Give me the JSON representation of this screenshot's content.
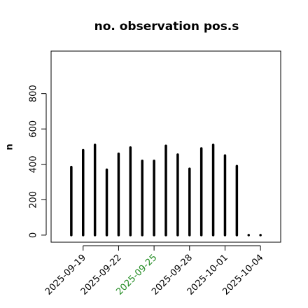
{
  "chart_data": {
    "type": "bar",
    "title": "no. observation pos.s",
    "y_label": "n",
    "x": [
      "2025-09-18",
      "2025-09-19",
      "2025-09-20",
      "2025-09-21",
      "2025-09-22",
      "2025-09-23",
      "2025-09-24",
      "2025-09-25",
      "2025-09-26",
      "2025-09-27",
      "2025-09-28",
      "2025-09-29",
      "2025-09-30",
      "2025-10-01",
      "2025-10-02",
      "2025-10-03",
      "2025-10-04"
    ],
    "values": [
      385,
      480,
      510,
      370,
      460,
      495,
      420,
      420,
      505,
      455,
      375,
      490,
      510,
      450,
      390,
      0,
      0
    ],
    "color": "#000000",
    "xlim": [
      "2025-09-16T07:00",
      "2025-10-05T17:00"
    ],
    "xticks": [
      "2025-09-19",
      "2025-09-22",
      "2025-09-25",
      "2025-09-28",
      "2025-10-01",
      "2025-10-04"
    ],
    "xtick_colors": [
      "#000000",
      "#000000",
      "#228b22",
      "#000000",
      "#000000",
      "#000000"
    ],
    "ylim": [
      -40,
      1040
    ],
    "yticks": [
      0,
      200,
      400,
      600,
      800
    ]
  }
}
